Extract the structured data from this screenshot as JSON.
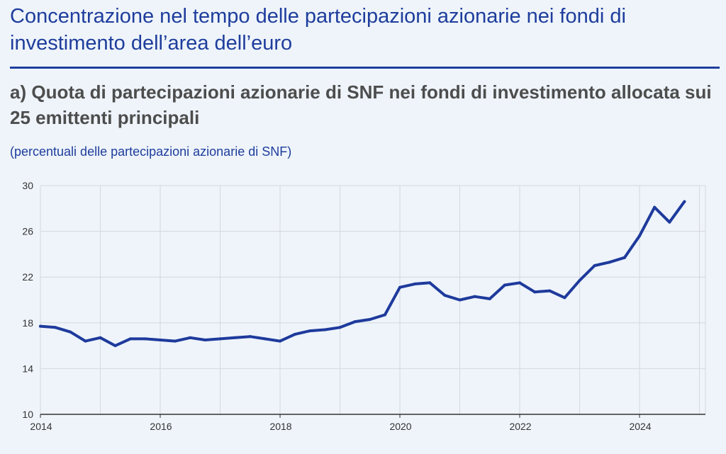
{
  "header": {
    "title": "Concentrazione nel tempo delle partecipazioni azionarie nei fondi di investimento dell’area dell’euro",
    "subtitle": "a) Quota di partecipazioni azionarie di SNF nei fondi di investimento allocata sui 25 emittenti principali",
    "units": "(percentuali delle partecipazioni azionarie di SNF)"
  },
  "colors": {
    "background": "#eef4fa",
    "accent": "#1e3d9c",
    "series_line": "#1e3a9c",
    "grid": "#d4d8de"
  },
  "chart_data": {
    "type": "line",
    "title": "a) Quota di partecipazioni azionarie di SNF nei fondi di investimento allocata sui 25 emittenti principali",
    "ylabel": "(percentuali delle partecipazioni azionarie di SNF)",
    "xlabel": "",
    "xlim": [
      2014,
      2025.1
    ],
    "ylim": [
      10,
      30
    ],
    "x_ticks": [
      "2014",
      "2016",
      "2018",
      "2020",
      "2022",
      "2024"
    ],
    "y_ticks": [
      "10",
      "14",
      "18",
      "22",
      "26",
      "30"
    ],
    "grid": true,
    "legend": "none",
    "series": [
      {
        "x": [
          2014.0,
          2014.25,
          2014.5,
          2014.75,
          2015.0,
          2015.25,
          2015.5,
          2015.75,
          2016.0,
          2016.25,
          2016.5,
          2016.75,
          2017.0,
          2017.25,
          2017.5,
          2017.75,
          2018.0,
          2018.25,
          2018.5,
          2018.75,
          2019.0,
          2019.25,
          2019.5,
          2019.75,
          2020.0,
          2020.25,
          2020.5,
          2020.75,
          2021.0,
          2021.25,
          2021.5,
          2021.75,
          2022.0,
          2022.25,
          2022.5,
          2022.75,
          2023.0,
          2023.25,
          2023.5,
          2023.75,
          2024.0,
          2024.25,
          2024.5,
          2024.75
        ],
        "values": [
          17.7,
          17.6,
          17.2,
          16.4,
          16.7,
          16.0,
          16.6,
          16.6,
          16.5,
          16.4,
          16.7,
          16.5,
          16.6,
          16.7,
          16.8,
          16.6,
          16.4,
          17.0,
          17.3,
          17.4,
          17.6,
          18.1,
          18.3,
          18.7,
          21.1,
          21.4,
          21.5,
          20.4,
          20.0,
          20.3,
          20.1,
          21.3,
          21.5,
          20.7,
          20.8,
          20.2,
          21.7,
          23.0,
          23.3,
          23.7,
          25.6,
          28.1,
          26.8,
          28.6
        ]
      }
    ]
  }
}
